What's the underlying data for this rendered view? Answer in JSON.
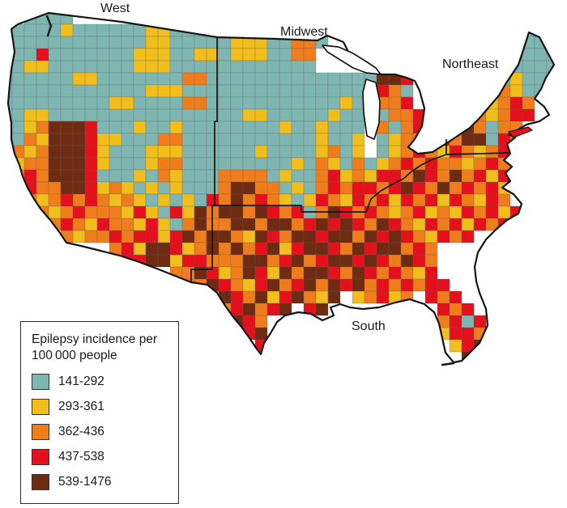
{
  "map": {
    "region_labels": [
      {
        "text": "West"
      },
      {
        "text": "Midwest"
      },
      {
        "text": "Northeast"
      },
      {
        "text": "South"
      }
    ],
    "palette": {
      "T": "#7FB6B2",
      "Y": "#F2BE1B",
      "O": "#EF7D1B",
      "R": "#E4111C",
      "B": "#6E2B11"
    },
    "cell_size": 15,
    "mosaic_rows": [
      "...............................................",
      "..TTTT.........................................",
      ".TTTTYTTTTTTYYTTTT.........................TT..",
      "TTTTTTTTTTTTYYTTTTTYYYTTOOT...............TTTT.",
      "TTTRTTTTTTTYYYTTYYTYYYTTOO...............TTTTT.",
      "TTYYTTTTTTTYYYTTTTTTTTTTTT...............TTTTT.",
      "TTTTTTYYTTTTTTTOOTTTTTTTTTTTTTTBBR.....TTTYTT..",
      "TTTTTTTTTTTTYYYTTTTTTTTTTTTTTT.ROT....YOTOYTT..",
      "TTTTTTTTTYYTTTTOOTTTTTTTTTTTYT.OOR....ROYORO...",
      "TTYYTTTTTTTTTTTTTTTTYYTTTTTYTT.TOOR..OROYORR...",
      "TTYOBBBRTTTYTTYTTTTTTTTYTTYTTT.OTOR..RBOTOO....",
      ".TOYBBBRYYTTTOOTTTTTTTTTTTYTTY.TYOO.ROBBTRO....",
      ".OYOBBBRYTTTYYYTTTTTTYTTTTYOTY.TYOROYROYORO....",
      ".YOOBBBRYTTTYOOTTTTTTTTTYTOYTOTYOROROOYORO.....",
      ".OROBBBRTTTYTOYTTTOOOOTYTTORYOYRROBROBORYR.....",
      ".YROOBBRYOYTYTYTTTOBBOOTYTORORRORBROBORORY.....",
      "..OYOROROYOYTYTYTROBOROYTYROYRORYRORYROYRO.....",
      "...OYOROOOYRYTRYBOBBOBRORTOBROROYORYOYRORYR....",
      "....OROYROOYRYTOBOOBBOBBORBRBROBROYRORYROR.....",
      ".....OYOORORRYRBOBBOYBROBBRBBOBRBROYROR........",
      ".........ORYBBRYOBOBORBYRBBROBRBBORO...........",
      "..........RRBBYRROOOBBORBORBBRBROBRO...........",
      "..............OOBRYOBRYBOBBROBROROYR...........",
      "...............OOBROYRBORBOBRBORORORR..........",
      ".................OBROBYRBOYB.YORYO.ROR.........",
      "..................ORBORB.RB.........ROR........",
      "...................BRO..............ORTR.......",
      "....................RB..............YRRO.......",
      ".....................R...............YRB.......",
      ".....................B................B........",
      "..............................................."
    ]
  },
  "legend": {
    "title_line1": "Epilepsy incidence per",
    "title_line2": "100 000 people",
    "items": [
      {
        "range": "141-292",
        "color": "#7FB6B2"
      },
      {
        "range": "293-361",
        "color": "#F2BE1B"
      },
      {
        "range": "362-436",
        "color": "#EF7D1B"
      },
      {
        "range": "437-538",
        "color": "#E4111C"
      },
      {
        "range": "539-1476",
        "color": "#6E2B11"
      }
    ]
  }
}
